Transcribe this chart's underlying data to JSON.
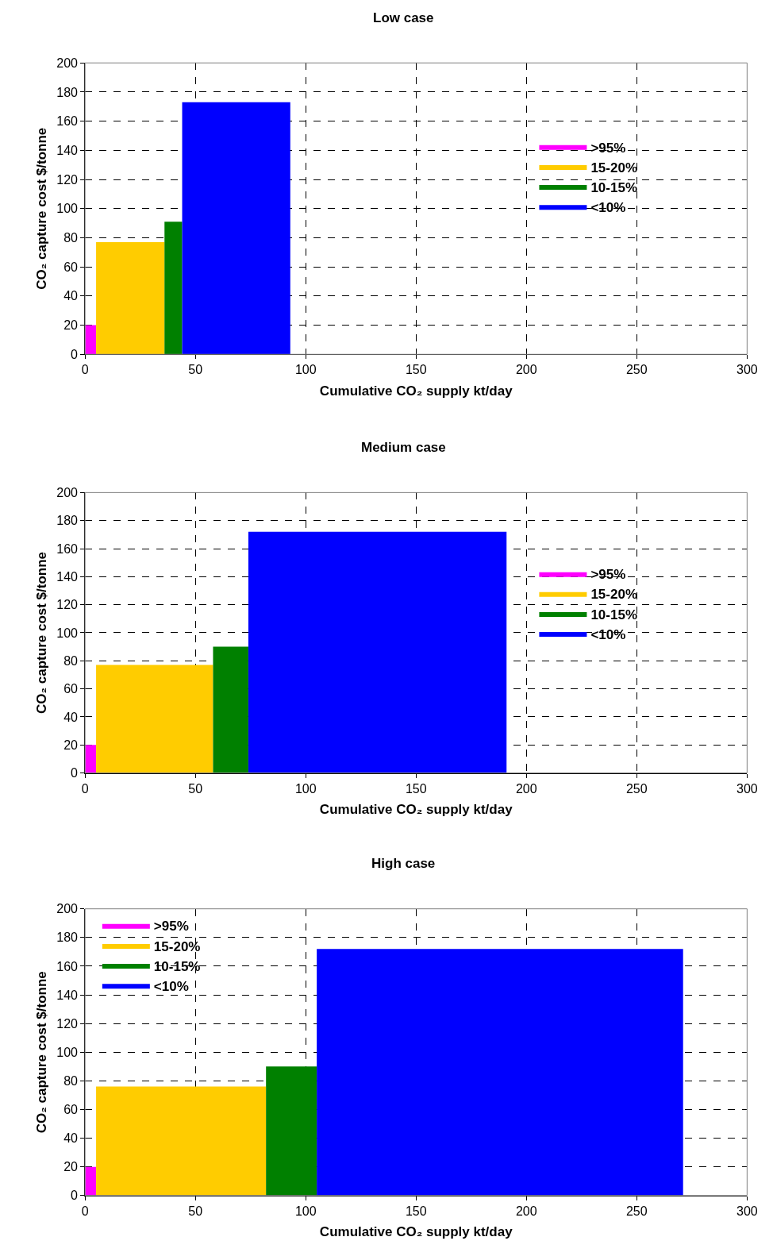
{
  "chart_data": [
    {
      "type": "area",
      "title": "Low case",
      "xlabel": "Cumulative CO₂ supply kt/day",
      "ylabel": "CO₂ capture cost $/tonne",
      "xlim": [
        0,
        300
      ],
      "xticks": [
        0,
        50,
        100,
        150,
        200,
        250,
        300
      ],
      "ylim": [
        0,
        200
      ],
      "yticks": [
        0,
        20,
        40,
        60,
        80,
        100,
        120,
        140,
        160,
        180,
        200
      ],
      "grid": true,
      "legend": "top right",
      "series": [
        {
          "name": ">95%",
          "color": "#ff00ff",
          "x": [
            0,
            5
          ],
          "values": [
            20,
            20
          ]
        },
        {
          "name": "15-20%",
          "color": "#ffcc00",
          "x": [
            5,
            36
          ],
          "values": [
            77,
            77
          ]
        },
        {
          "name": "10-15%",
          "color": "#008000",
          "x": [
            36,
            44
          ],
          "values": [
            91,
            91
          ]
        },
        {
          "name": "<10%",
          "color": "#0000ff",
          "x": [
            44,
            93
          ],
          "values": [
            173,
            173
          ]
        }
      ]
    },
    {
      "type": "area",
      "title": "Medium case",
      "xlabel": "Cumulative CO₂ supply kt/day",
      "ylabel": "CO₂ capture cost $/tonne",
      "xlim": [
        0,
        300
      ],
      "xticks": [
        0,
        50,
        100,
        150,
        200,
        250,
        300
      ],
      "ylim": [
        0,
        200
      ],
      "yticks": [
        0,
        20,
        40,
        60,
        80,
        100,
        120,
        140,
        160,
        180,
        200
      ],
      "grid": true,
      "legend": "top right",
      "series": [
        {
          "name": ">95%",
          "color": "#ff00ff",
          "x": [
            0,
            5
          ],
          "values": [
            20,
            20
          ]
        },
        {
          "name": "15-20%",
          "color": "#ffcc00",
          "x": [
            5,
            58
          ],
          "values": [
            77,
            77
          ]
        },
        {
          "name": "10-15%",
          "color": "#008000",
          "x": [
            58,
            74
          ],
          "values": [
            90,
            90
          ]
        },
        {
          "name": "<10%",
          "color": "#0000ff",
          "x": [
            74,
            191
          ],
          "values": [
            172,
            172
          ]
        }
      ]
    },
    {
      "type": "area",
      "title": "High case",
      "xlabel": "Cumulative CO₂ supply kt/day",
      "ylabel": "CO₂ capture cost $/tonne",
      "xlim": [
        0,
        300
      ],
      "xticks": [
        0,
        50,
        100,
        150,
        200,
        250,
        300
      ],
      "ylim": [
        0,
        200
      ],
      "yticks": [
        0,
        20,
        40,
        60,
        80,
        100,
        120,
        140,
        160,
        180,
        200
      ],
      "grid": true,
      "legend": "top left",
      "series": [
        {
          "name": ">95%",
          "color": "#ff00ff",
          "x": [
            0,
            5
          ],
          "values": [
            20,
            20
          ]
        },
        {
          "name": "15-20%",
          "color": "#ffcc00",
          "x": [
            5,
            82
          ],
          "values": [
            76,
            76
          ]
        },
        {
          "name": "10-15%",
          "color": "#008000",
          "x": [
            82,
            105
          ],
          "values": [
            90,
            90
          ]
        },
        {
          "name": "<10%",
          "color": "#0000ff",
          "x": [
            105,
            271
          ],
          "values": [
            172,
            172
          ]
        }
      ]
    }
  ]
}
